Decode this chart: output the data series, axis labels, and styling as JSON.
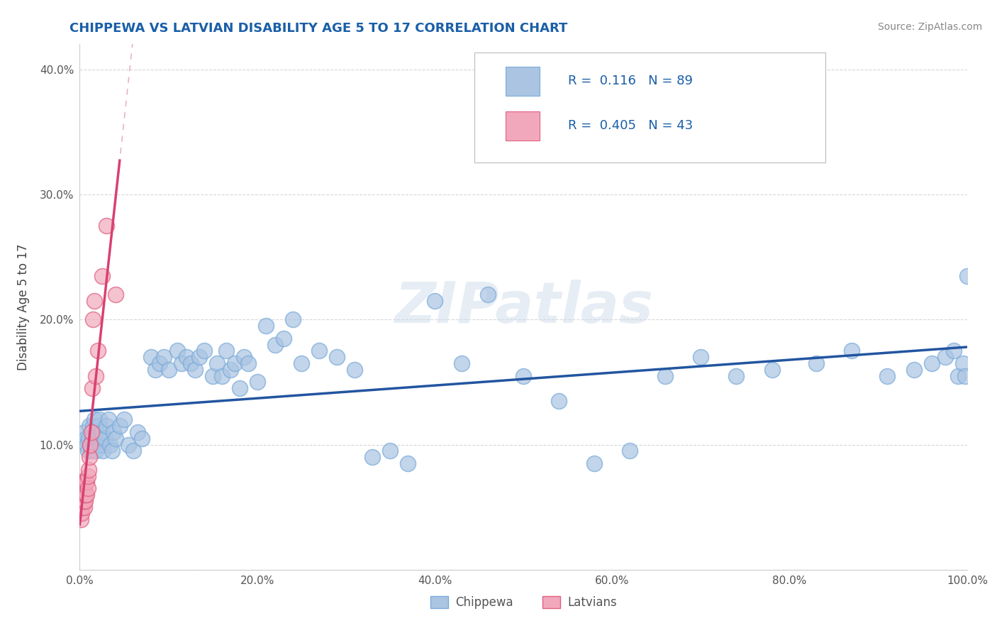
{
  "title": "CHIPPEWA VS LATVIAN DISABILITY AGE 5 TO 17 CORRELATION CHART",
  "source": "Source: ZipAtlas.com",
  "ylabel_label": "Disability Age 5 to 17",
  "xlim": [
    0,
    1.0
  ],
  "ylim": [
    0,
    0.42
  ],
  "xticks": [
    0.0,
    0.2,
    0.4,
    0.6,
    0.8,
    1.0
  ],
  "xticklabels": [
    "0.0%",
    "20.0%",
    "40.0%",
    "60.0%",
    "80.0%",
    "100.0%"
  ],
  "yticks": [
    0.0,
    0.1,
    0.2,
    0.3,
    0.4
  ],
  "yticklabels": [
    "",
    "10.0%",
    "20.0%",
    "30.0%",
    "40.0%"
  ],
  "chippewa_R": 0.116,
  "chippewa_N": 89,
  "latvian_R": 0.405,
  "latvian_N": 43,
  "chippewa_color": "#aac4e2",
  "latvian_color": "#f2a8bc",
  "chippewa_line_color": "#2255a0",
  "latvian_line_color": "#d94070",
  "diag_line_color": "#e0a0b8",
  "legend_label_chippewa": "Chippewa",
  "legend_label_latvian": "Latvians",
  "watermark": "ZIPatlas",
  "background_color": "#ffffff",
  "grid_color": "#d8d8d8",
  "chippewa_x": [
    0.005,
    0.007,
    0.008,
    0.009,
    0.01,
    0.011,
    0.012,
    0.013,
    0.014,
    0.015,
    0.016,
    0.017,
    0.018,
    0.019,
    0.02,
    0.021,
    0.022,
    0.023,
    0.024,
    0.025,
    0.026,
    0.028,
    0.03,
    0.032,
    0.034,
    0.036,
    0.038,
    0.04,
    0.045,
    0.05,
    0.055,
    0.06,
    0.065,
    0.07,
    0.08,
    0.085,
    0.09,
    0.095,
    0.1,
    0.11,
    0.115,
    0.12,
    0.125,
    0.13,
    0.135,
    0.14,
    0.15,
    0.155,
    0.16,
    0.165,
    0.17,
    0.175,
    0.18,
    0.185,
    0.19,
    0.2,
    0.21,
    0.22,
    0.23,
    0.24,
    0.25,
    0.27,
    0.29,
    0.31,
    0.33,
    0.35,
    0.37,
    0.4,
    0.43,
    0.46,
    0.5,
    0.54,
    0.58,
    0.62,
    0.66,
    0.7,
    0.74,
    0.78,
    0.83,
    0.87,
    0.91,
    0.94,
    0.96,
    0.975,
    0.985,
    0.99,
    0.995,
    0.998,
    1.0
  ],
  "chippewa_y": [
    0.11,
    0.105,
    0.1,
    0.095,
    0.105,
    0.115,
    0.1,
    0.095,
    0.105,
    0.115,
    0.12,
    0.1,
    0.095,
    0.11,
    0.105,
    0.115,
    0.12,
    0.1,
    0.105,
    0.11,
    0.095,
    0.105,
    0.115,
    0.12,
    0.1,
    0.095,
    0.11,
    0.105,
    0.115,
    0.12,
    0.1,
    0.095,
    0.11,
    0.105,
    0.17,
    0.16,
    0.165,
    0.17,
    0.16,
    0.175,
    0.165,
    0.17,
    0.165,
    0.16,
    0.17,
    0.175,
    0.155,
    0.165,
    0.155,
    0.175,
    0.16,
    0.165,
    0.145,
    0.17,
    0.165,
    0.15,
    0.195,
    0.18,
    0.185,
    0.2,
    0.165,
    0.175,
    0.17,
    0.16,
    0.09,
    0.095,
    0.085,
    0.215,
    0.165,
    0.22,
    0.155,
    0.135,
    0.085,
    0.095,
    0.155,
    0.17,
    0.155,
    0.16,
    0.165,
    0.175,
    0.155,
    0.16,
    0.165,
    0.17,
    0.175,
    0.155,
    0.165,
    0.155,
    0.235
  ],
  "latvian_x": [
    0.001,
    0.001,
    0.001,
    0.002,
    0.002,
    0.002,
    0.002,
    0.002,
    0.003,
    0.003,
    0.003,
    0.003,
    0.003,
    0.004,
    0.004,
    0.004,
    0.004,
    0.005,
    0.005,
    0.005,
    0.005,
    0.005,
    0.006,
    0.006,
    0.006,
    0.007,
    0.007,
    0.008,
    0.008,
    0.009,
    0.009,
    0.01,
    0.011,
    0.012,
    0.013,
    0.014,
    0.015,
    0.016,
    0.018,
    0.02,
    0.025,
    0.03,
    0.04
  ],
  "latvian_y": [
    0.04,
    0.05,
    0.055,
    0.045,
    0.055,
    0.06,
    0.065,
    0.07,
    0.05,
    0.055,
    0.06,
    0.065,
    0.07,
    0.055,
    0.06,
    0.065,
    0.07,
    0.05,
    0.055,
    0.06,
    0.065,
    0.07,
    0.055,
    0.06,
    0.07,
    0.06,
    0.07,
    0.06,
    0.07,
    0.065,
    0.075,
    0.08,
    0.09,
    0.1,
    0.11,
    0.145,
    0.2,
    0.215,
    0.155,
    0.175,
    0.235,
    0.275,
    0.22
  ]
}
